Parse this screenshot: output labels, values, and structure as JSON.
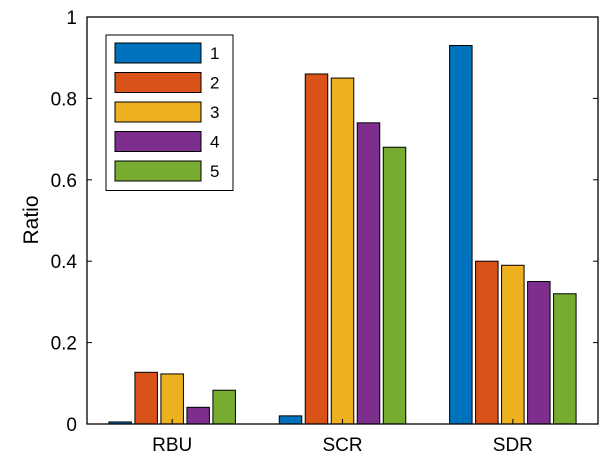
{
  "chart_data": {
    "type": "bar",
    "categories": [
      "RBU",
      "SCR",
      "SDR"
    ],
    "series": [
      {
        "name": "1",
        "values": [
          0.005,
          0.02,
          0.93
        ],
        "color": "#0072BD"
      },
      {
        "name": "2",
        "values": [
          0.127,
          0.86,
          0.4
        ],
        "color": "#D95319"
      },
      {
        "name": "3",
        "values": [
          0.123,
          0.85,
          0.39
        ],
        "color": "#EDB120"
      },
      {
        "name": "4",
        "values": [
          0.041,
          0.74,
          0.35
        ],
        "color": "#7E2F8E"
      },
      {
        "name": "5",
        "values": [
          0.083,
          0.68,
          0.32
        ],
        "color": "#77AC30"
      }
    ],
    "ylabel": "Ratio",
    "xlabel": "",
    "ylim": [
      0,
      1
    ],
    "yticks": [
      "0",
      "0.2",
      "0.4",
      "0.6",
      "0.8",
      "1"
    ],
    "legend": "top-left",
    "grid": false
  }
}
